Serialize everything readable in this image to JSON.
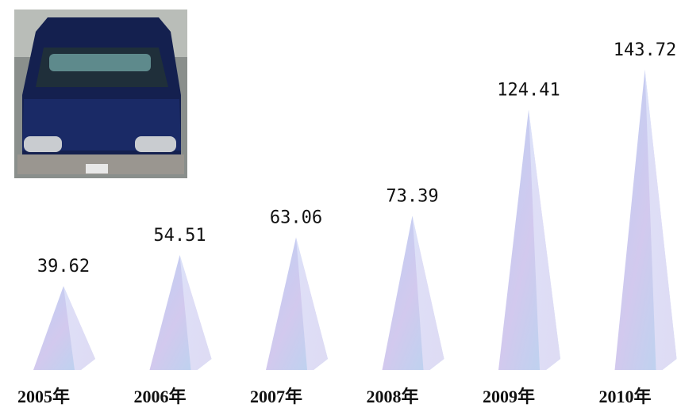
{
  "chart_data": {
    "type": "bar",
    "categories": [
      "2005年",
      "2006年",
      "2007年",
      "2008年",
      "2009年",
      "2010年"
    ],
    "values": [
      39.62,
      54.51,
      63.06,
      73.39,
      124.41,
      143.72
    ],
    "color": "#c3d2f2"
  }
}
